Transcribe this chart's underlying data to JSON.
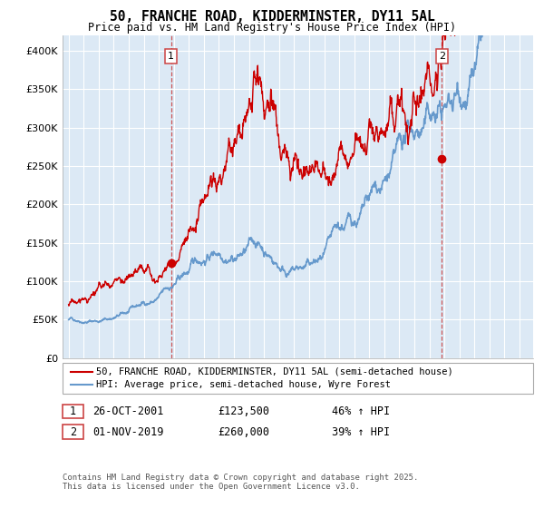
{
  "title": "50, FRANCHE ROAD, KIDDERMINSTER, DY11 5AL",
  "subtitle": "Price paid vs. HM Land Registry's House Price Index (HPI)",
  "legend_line1": "50, FRANCHE ROAD, KIDDERMINSTER, DY11 5AL (semi-detached house)",
  "legend_line2": "HPI: Average price, semi-detached house, Wyre Forest",
  "annotation1_label": "1",
  "annotation1_date": "26-OCT-2001",
  "annotation1_price": "£123,500",
  "annotation1_hpi": "46% ↑ HPI",
  "annotation1_year": 2001.82,
  "annotation1_value": 123500,
  "annotation2_label": "2",
  "annotation2_date": "01-NOV-2019",
  "annotation2_price": "£260,000",
  "annotation2_hpi": "39% ↑ HPI",
  "annotation2_year": 2019.83,
  "annotation2_value": 260000,
  "footer": "Contains HM Land Registry data © Crown copyright and database right 2025.\nThis data is licensed under the Open Government Licence v3.0.",
  "red_color": "#cc0000",
  "blue_color": "#6699cc",
  "bg_color": "#dce9f5",
  "dashed_color": "#cc4444",
  "ylim": [
    0,
    420000
  ],
  "yticks": [
    0,
    50000,
    100000,
    150000,
    200000,
    250000,
    300000,
    350000,
    400000
  ],
  "xlabel_start": 1995,
  "xlabel_end": 2025
}
